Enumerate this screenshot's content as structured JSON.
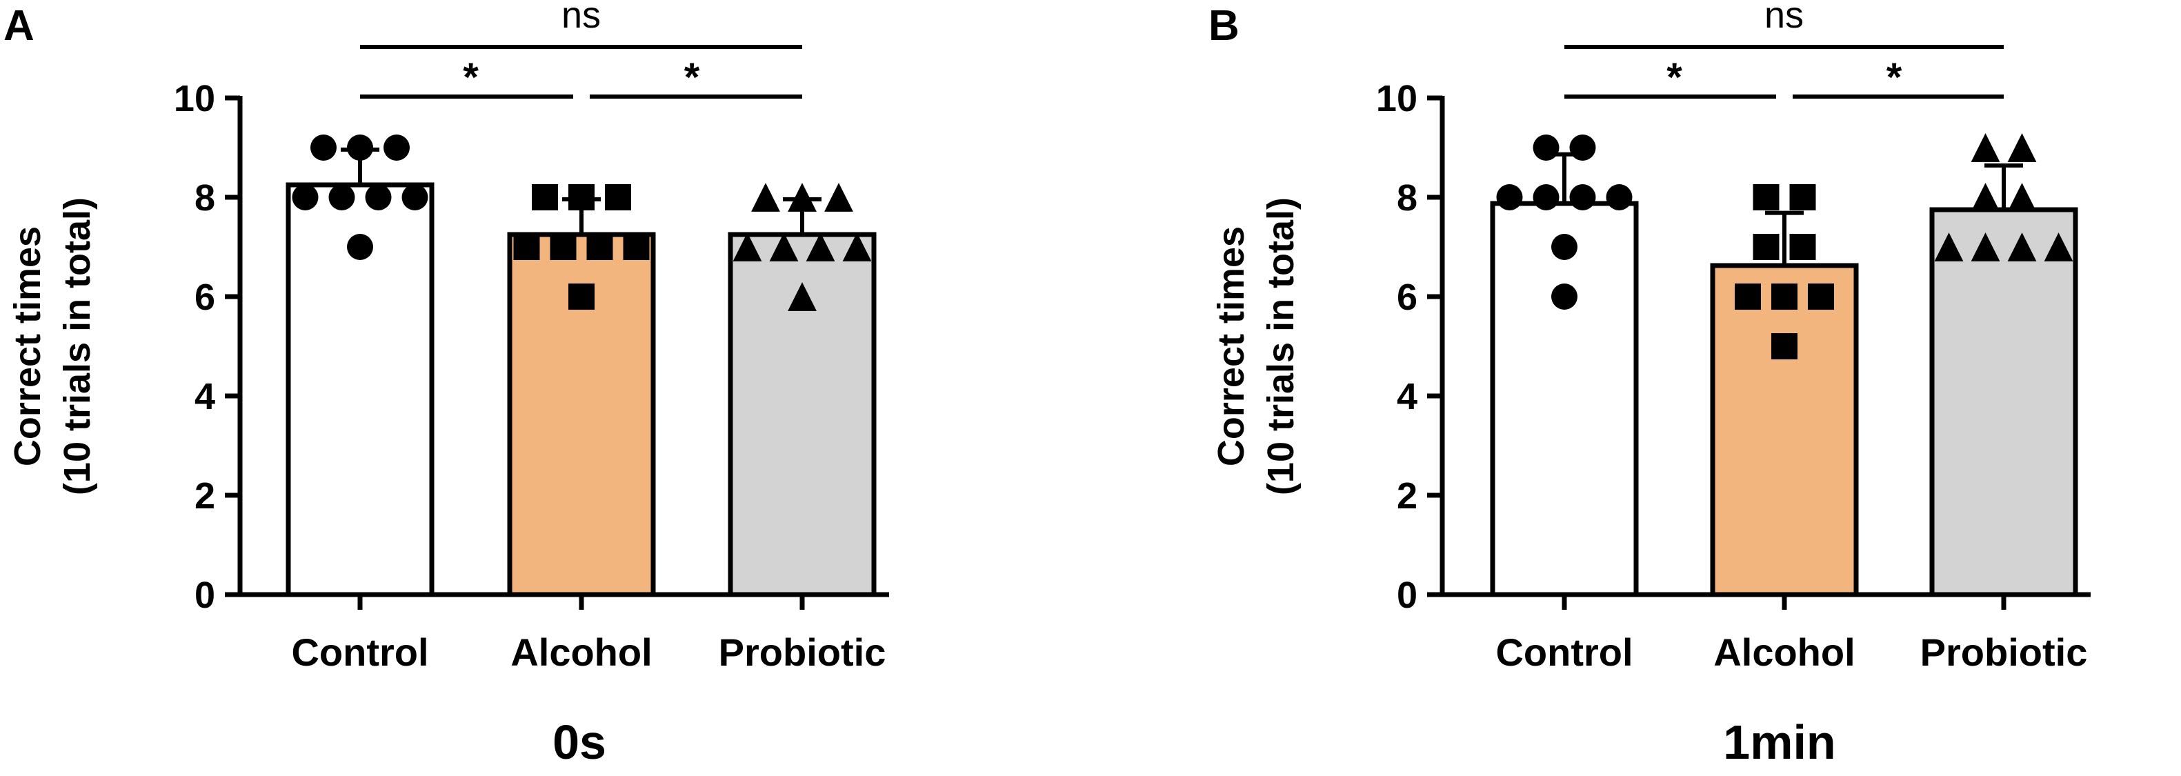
{
  "chart_data": [
    {
      "type": "bar",
      "panel_label": "A",
      "title": "",
      "xlabel": "0s",
      "ylabel_lines": [
        "Correct times",
        "(10 trials in total)"
      ],
      "ylim": [
        0,
        10
      ],
      "yticks": [
        "0",
        "2",
        "4",
        "6",
        "8",
        "10"
      ],
      "grid": false,
      "categories": [
        "Control",
        "Alcohol",
        "Probiotic"
      ],
      "values": [
        8.25,
        7.25,
        7.25
      ],
      "error": [
        0.71,
        0.71,
        0.71
      ],
      "bar_colors": [
        "#ffffff",
        "#f2b57e",
        "#d3d3d3"
      ],
      "markers": [
        "circle",
        "square",
        "triangle"
      ],
      "points": [
        [
          9,
          9,
          9,
          8,
          8,
          8,
          8,
          7
        ],
        [
          8,
          8,
          8,
          7,
          7,
          7,
          7,
          6
        ],
        [
          8,
          8,
          8,
          7,
          7,
          7,
          7,
          6
        ]
      ],
      "comparisons": [
        {
          "from": 0,
          "to": 1,
          "label": "*"
        },
        {
          "from": 1,
          "to": 2,
          "label": "*"
        },
        {
          "from": 0,
          "to": 2,
          "label": "ns"
        }
      ]
    },
    {
      "type": "bar",
      "panel_label": "B",
      "title": "",
      "xlabel": "1min",
      "ylabel_lines": [
        "Correct times",
        "(10 trials in total)"
      ],
      "ylim": [
        0,
        10
      ],
      "yticks": [
        "0",
        "2",
        "4",
        "6",
        "8",
        "10"
      ],
      "grid": false,
      "categories": [
        "Control",
        "Alcohol",
        "Probiotic"
      ],
      "values": [
        7.875,
        6.625,
        7.75
      ],
      "error": [
        0.99,
        1.06,
        0.89
      ],
      "bar_colors": [
        "#ffffff",
        "#f2b57e",
        "#d3d3d3"
      ],
      "markers": [
        "circle",
        "square",
        "triangle"
      ],
      "points": [
        [
          9,
          9,
          8,
          8,
          8,
          8,
          7,
          6
        ],
        [
          8,
          8,
          7,
          7,
          6,
          6,
          6,
          5
        ],
        [
          9,
          9,
          8,
          8,
          7,
          7,
          7,
          7
        ]
      ],
      "comparisons": [
        {
          "from": 0,
          "to": 1,
          "label": "*"
        },
        {
          "from": 1,
          "to": 2,
          "label": "*"
        },
        {
          "from": 0,
          "to": 2,
          "label": "ns"
        }
      ]
    }
  ]
}
